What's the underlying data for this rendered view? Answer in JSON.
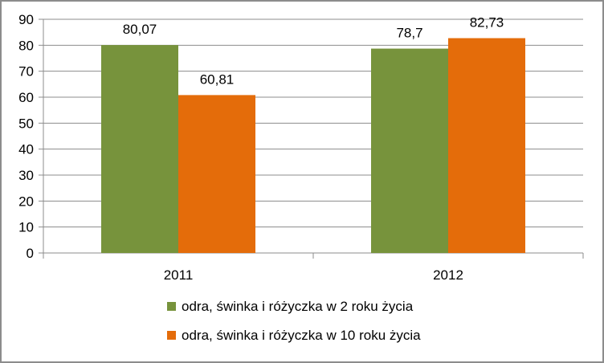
{
  "chart_data": {
    "type": "bar",
    "categories": [
      "2011",
      "2012"
    ],
    "series": [
      {
        "name": "odra, świnka i różyczka w 2 roku życia",
        "values": [
          80.07,
          78.7
        ],
        "labels": [
          "80,07",
          "78,7"
        ],
        "color": "#77933C"
      },
      {
        "name": "odra, świnka i różyczka w 10 roku życia",
        "values": [
          60.81,
          82.73
        ],
        "labels": [
          "60,81",
          "82,73"
        ],
        "color": "#E46C0A"
      }
    ],
    "ylim": [
      0,
      90
    ],
    "yticks": [
      "0",
      "10",
      "20",
      "30",
      "40",
      "50",
      "60",
      "70",
      "80",
      "90"
    ],
    "grid": true,
    "legend_position": "bottom",
    "title": "",
    "xlabel": "",
    "ylabel": ""
  }
}
